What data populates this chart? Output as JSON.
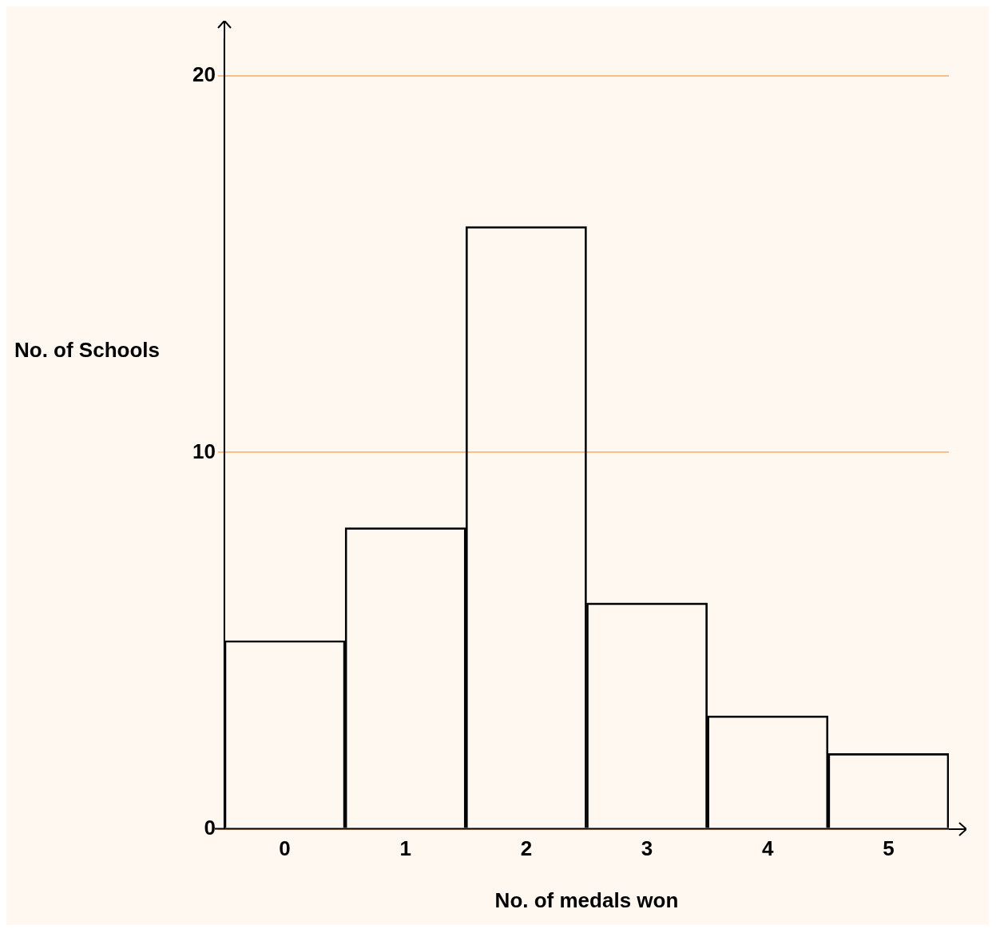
{
  "chart_data": {
    "type": "bar",
    "xlabel": "No. of medals won",
    "ylabel": "No. of Schools",
    "categories": [
      "0",
      "1",
      "2",
      "3",
      "4",
      "5"
    ],
    "values": [
      5,
      8,
      16,
      6,
      3,
      2
    ],
    "color": "#000000",
    "ylim": [
      0,
      21
    ],
    "yticks": [
      0,
      10,
      20
    ],
    "grid": "y",
    "legend": false
  }
}
